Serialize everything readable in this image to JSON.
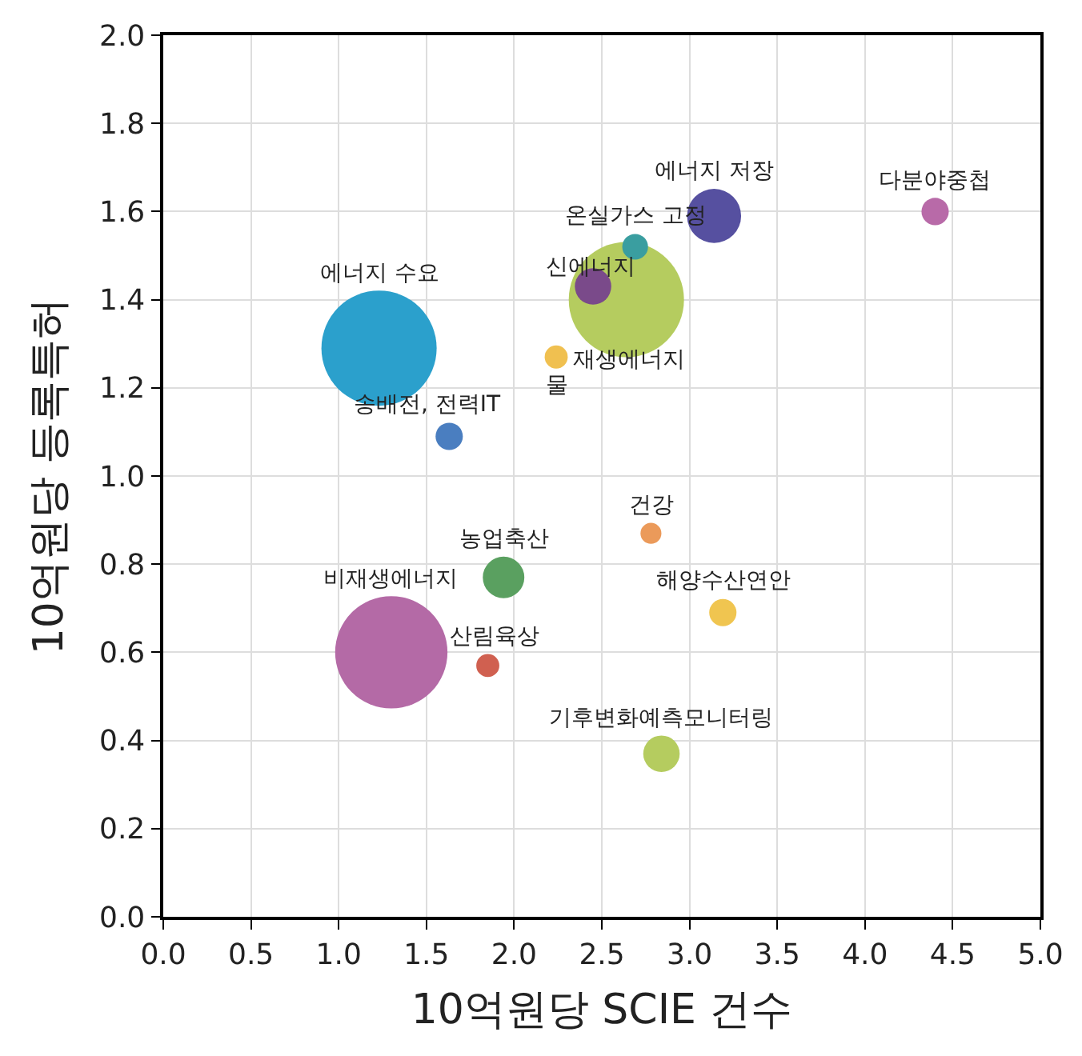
{
  "chart_data": {
    "type": "bubble",
    "xlabel": "10억원당 SCIE 건수",
    "ylabel": "10억원당 등록특허",
    "xlim": [
      0,
      5
    ],
    "xticks": [
      {
        "value": 0,
        "label": "0.0"
      },
      0.5,
      {
        "value": 1,
        "label": "1.0"
      },
      1.5,
      {
        "value": 2,
        "label": "2.0"
      },
      2.5,
      {
        "value": 3,
        "label": "3.0"
      },
      3.5,
      {
        "value": 4,
        "label": "4.0"
      },
      4.5,
      {
        "value": 5,
        "label": "5.0"
      }
    ],
    "ylim": [
      0,
      2
    ],
    "yticks": [
      {
        "value": 0,
        "label": "0.0"
      },
      0.2,
      0.4,
      0.6,
      0.8,
      {
        "value": 1,
        "label": "1.0"
      },
      1.2,
      1.4,
      1.6,
      1.8,
      {
        "value": 2,
        "label": "2.0"
      }
    ],
    "grid": true,
    "series": [
      {
        "name": "에너지 수요",
        "color": "#2ba0cc",
        "x": [
          1.23
        ],
        "values": [
          1.29
        ],
        "sizes": [
          1
        ]
      },
      {
        "name": "재생에너지",
        "color": "#b5cc5f",
        "x": [
          2.64
        ],
        "values": [
          1.4
        ],
        "sizes": [
          1
        ]
      },
      {
        "name": "비재생에너지",
        "color": "#b46aa6",
        "x": [
          1.3
        ],
        "values": [
          0.6
        ],
        "sizes": [
          0.95
        ]
      },
      {
        "name": "에너지 저장",
        "color": "#5650a0",
        "x": [
          3.14
        ],
        "values": [
          1.59
        ],
        "sizes": [
          0.22
        ]
      },
      {
        "name": "다분야중첩",
        "color": "#b86aa8",
        "x": [
          4.4
        ],
        "values": [
          1.6
        ],
        "sizes": [
          0.056
        ]
      },
      {
        "name": "온실가스 고정",
        "color": "#3a9ea0",
        "x": [
          2.69
        ],
        "values": [
          1.52
        ],
        "sizes": [
          0.05
        ]
      },
      {
        "name": "신에너지",
        "color": "#7a4a8a",
        "x": [
          2.45
        ],
        "values": [
          1.43
        ],
        "sizes": [
          0.1
        ]
      },
      {
        "name": "물",
        "color": "#f0c050",
        "x": [
          2.24
        ],
        "values": [
          1.27
        ],
        "sizes": [
          0.04
        ]
      },
      {
        "name": "송배전, 전력IT",
        "color": "#4a7ec0",
        "x": [
          1.63
        ],
        "values": [
          1.09
        ],
        "sizes": [
          0.056
        ]
      },
      {
        "name": "건강",
        "color": "#eb9a5a",
        "x": [
          2.78
        ],
        "values": [
          0.87
        ],
        "sizes": [
          0.033
        ]
      },
      {
        "name": "농업축산",
        "color": "#5aa060",
        "x": [
          1.94
        ],
        "values": [
          0.77
        ],
        "sizes": [
          0.13
        ]
      },
      {
        "name": "해양수산연안",
        "color": "#f0c550",
        "x": [
          3.19
        ],
        "values": [
          0.69
        ],
        "sizes": [
          0.056
        ]
      },
      {
        "name": "산림육상",
        "color": "#d06050",
        "x": [
          1.85
        ],
        "values": [
          0.57
        ],
        "sizes": [
          0.04
        ]
      },
      {
        "name": "기후변화예측모니터링",
        "color": "#b5cc5f",
        "x": [
          2.84
        ],
        "values": [
          0.37
        ],
        "sizes": [
          0.1
        ]
      }
    ]
  }
}
